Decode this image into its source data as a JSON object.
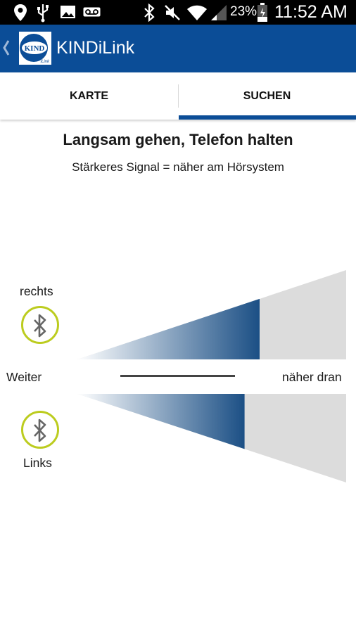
{
  "status_bar": {
    "battery_percent": "23%",
    "time": "11:52 AM",
    "icons": [
      "location-icon",
      "usb-icon",
      "image-icon",
      "voicemail-icon",
      "bluetooth-icon",
      "mute-icon",
      "wifi-icon",
      "signal-icon",
      "battery-icon"
    ]
  },
  "app_bar": {
    "title": "KINDiLink",
    "logo_text": "KIND",
    "logo_subtext": "iLink",
    "back_icon": "chevron-left-icon"
  },
  "tabs": [
    {
      "label": "KARTE",
      "selected": false
    },
    {
      "label": "SUCHEN",
      "selected": true
    }
  ],
  "main": {
    "heading": "Langsam gehen, Telefon halten",
    "subheading": "Stärkeres Signal = näher am Hörsystem",
    "right_label": "rechts",
    "left_label": "Links",
    "far_label": "Weiter",
    "near_label": "näher dran",
    "signal_right_fraction": 0.678,
    "signal_left_fraction": 0.622
  },
  "colors": {
    "brand_blue": "#0b4d97",
    "tab_indicator": "#0b4d97",
    "bluetooth_ring": "#bccc1f",
    "signal_track": "#dcdcdc"
  }
}
